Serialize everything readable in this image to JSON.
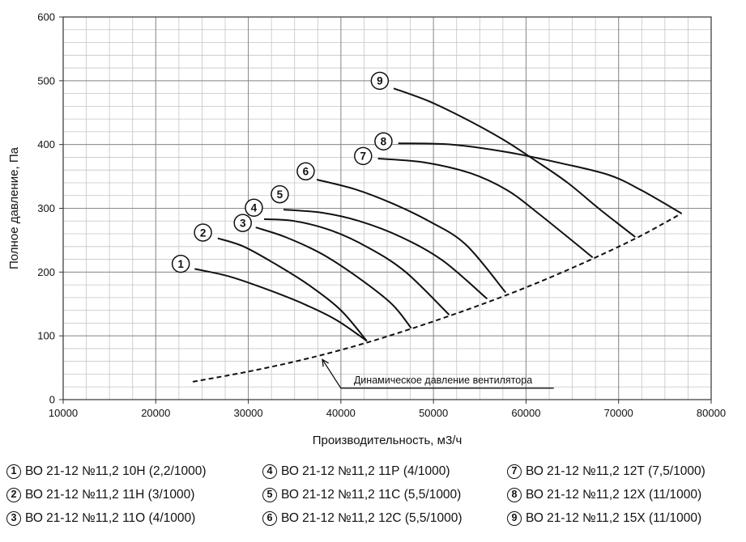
{
  "chart_data": {
    "type": "line",
    "xlabel": "Производительность, м3/ч",
    "ylabel": "Полное давление, Па",
    "xlim": [
      10000,
      80000
    ],
    "ylim": [
      0,
      600
    ],
    "x_ticks": [
      10000,
      20000,
      30000,
      40000,
      50000,
      60000,
      70000,
      80000
    ],
    "y_ticks": [
      0,
      100,
      200,
      300,
      400,
      500,
      600
    ],
    "grid": true,
    "x_minor_step": 2500,
    "y_minor_step": 20,
    "series": [
      {
        "name": "1",
        "x": [
          24200,
          28000,
          32000,
          36000,
          39500,
          42800
        ],
        "y": [
          205,
          193,
          173,
          150,
          125,
          92
        ]
      },
      {
        "name": "2",
        "x": [
          26700,
          29500,
          33000,
          36500,
          40000,
          42800
        ],
        "y": [
          253,
          240,
          212,
          180,
          140,
          92
        ]
      },
      {
        "name": "3",
        "x": [
          30800,
          34000,
          38000,
          42000,
          45500,
          47600
        ],
        "y": [
          270,
          255,
          228,
          190,
          150,
          112
        ]
      },
      {
        "name": "4",
        "x": [
          31700,
          35000,
          39000,
          43000,
          47000,
          51700
        ],
        "y": [
          283,
          280,
          265,
          238,
          200,
          133
        ]
      },
      {
        "name": "5",
        "x": [
          33800,
          38000,
          42000,
          46500,
          51000,
          55800
        ],
        "y": [
          298,
          293,
          280,
          255,
          218,
          158
        ]
      },
      {
        "name": "6",
        "x": [
          37400,
          41500,
          45500,
          49500,
          53500,
          57800
        ],
        "y": [
          345,
          330,
          308,
          280,
          243,
          168
        ]
      },
      {
        "name": "7",
        "x": [
          44000,
          49000,
          54000,
          58000,
          61500,
          67200
        ],
        "y": [
          378,
          372,
          355,
          328,
          290,
          223
        ]
      },
      {
        "name": "8",
        "x": [
          46200,
          52000,
          58000,
          64000,
          69000,
          72500,
          76800
        ],
        "y": [
          402,
          400,
          388,
          370,
          352,
          328,
          292
        ]
      },
      {
        "name": "9",
        "x": [
          45700,
          49500,
          53500,
          57500,
          61000,
          64500,
          68000,
          71800
        ],
        "y": [
          488,
          468,
          440,
          408,
          375,
          340,
          298,
          255
        ]
      }
    ],
    "dynamic_pressure": {
      "name": "Динамическое давление вентилятора",
      "x": [
        24000,
        30000,
        36000,
        42000,
        48000,
        54000,
        60000,
        66000,
        72000,
        76800
      ],
      "y": [
        28,
        44,
        63,
        86,
        113,
        143,
        176,
        213,
        254,
        292
      ]
    },
    "annotation": {
      "text": "Динамическое давление вентилятора",
      "arrow_tip": [
        38000,
        63
      ],
      "elbow": [
        40000,
        18
      ],
      "end": [
        63000,
        18
      ]
    },
    "curve_labels": [
      {
        "text": "1",
        "x": 22700,
        "y": 213
      },
      {
        "text": "2",
        "x": 25100,
        "y": 262
      },
      {
        "text": "3",
        "x": 29400,
        "y": 277
      },
      {
        "text": "4",
        "x": 30600,
        "y": 301
      },
      {
        "text": "5",
        "x": 33400,
        "y": 322
      },
      {
        "text": "6",
        "x": 36200,
        "y": 358
      },
      {
        "text": "7",
        "x": 42400,
        "y": 382
      },
      {
        "text": "8",
        "x": 44600,
        "y": 405
      },
      {
        "text": "9",
        "x": 44200,
        "y": 500
      }
    ]
  },
  "legend": [
    [
      {
        "num": "1",
        "label": "ВО 21-12 №11,2 10Н (2,2/1000)"
      },
      {
        "num": "4",
        "label": "ВО 21-12 №11,2 11Р (4/1000)"
      },
      {
        "num": "7",
        "label": "ВО 21-12 №11,2 12Т (7,5/1000)"
      }
    ],
    [
      {
        "num": "2",
        "label": "ВО 21-12 №11,2 11Н (3/1000)"
      },
      {
        "num": "5",
        "label": "ВО 21-12 №11,2 11С (5,5/1000)"
      },
      {
        "num": "8",
        "label": "ВО 21-12 №11,2 12Х (11/1000)"
      }
    ],
    [
      {
        "num": "3",
        "label": "ВО 21-12 №11,2 11О (4/1000)"
      },
      {
        "num": "6",
        "label": "ВО 21-12 №11,2 12С (5,5/1000)"
      },
      {
        "num": "9",
        "label": "ВО 21-12 №11,2 15Х (11/1000)"
      }
    ]
  ]
}
